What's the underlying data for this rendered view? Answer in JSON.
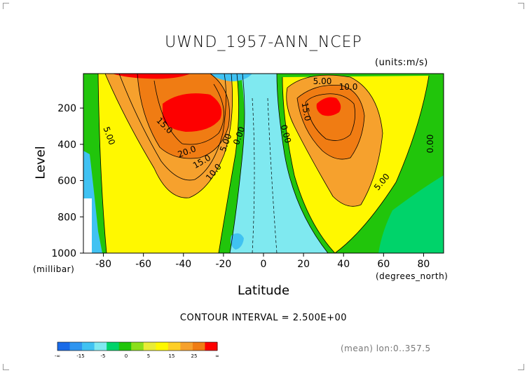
{
  "chart_data": {
    "type": "contour",
    "title": "UWND_1957-ANN_NCEP",
    "units_label": "(units:m/s)",
    "xlabel": "Latitude",
    "x_unit": "(degrees_north)",
    "ylabel": "Level",
    "y_unit": "(millibar)",
    "xlim": [
      -90,
      90
    ],
    "ylim": [
      1000,
      10
    ],
    "y_reversed": true,
    "x_ticks": [
      -80,
      -60,
      -40,
      -20,
      0,
      20,
      40,
      60,
      80
    ],
    "y_ticks": [
      200,
      400,
      600,
      800,
      1000
    ],
    "contour_interval": 2.5,
    "contour_interval_label": "CONTOUR INTERVAL = 2.500E+00",
    "contour_labels": [
      "5.00",
      "20.0",
      "15.0",
      "10.0",
      "5.00",
      "0.00",
      "15.0",
      "0.00",
      "5.00",
      "10.0",
      "15.0",
      "5.00",
      "0.00"
    ],
    "jets": [
      {
        "lat": -30,
        "level": 180,
        "value": 30
      },
      {
        "lat": 30,
        "level": 180,
        "value": 27
      }
    ],
    "colorbar": {
      "tick_labels": [
        "-∞",
        "-15",
        "-5",
        "0",
        "5",
        "15",
        "25",
        "∞"
      ],
      "colors": [
        "#1a6be8",
        "#2f95f0",
        "#40c2f2",
        "#7fe9f0",
        "#00d36a",
        "#21c50b",
        "#8bdf1b",
        "#e9ec36",
        "#fff800",
        "#fecf28",
        "#f6a12d",
        "#f07c13",
        "#fd0000"
      ]
    },
    "footnote": "(mean) lon:0..357.5"
  }
}
